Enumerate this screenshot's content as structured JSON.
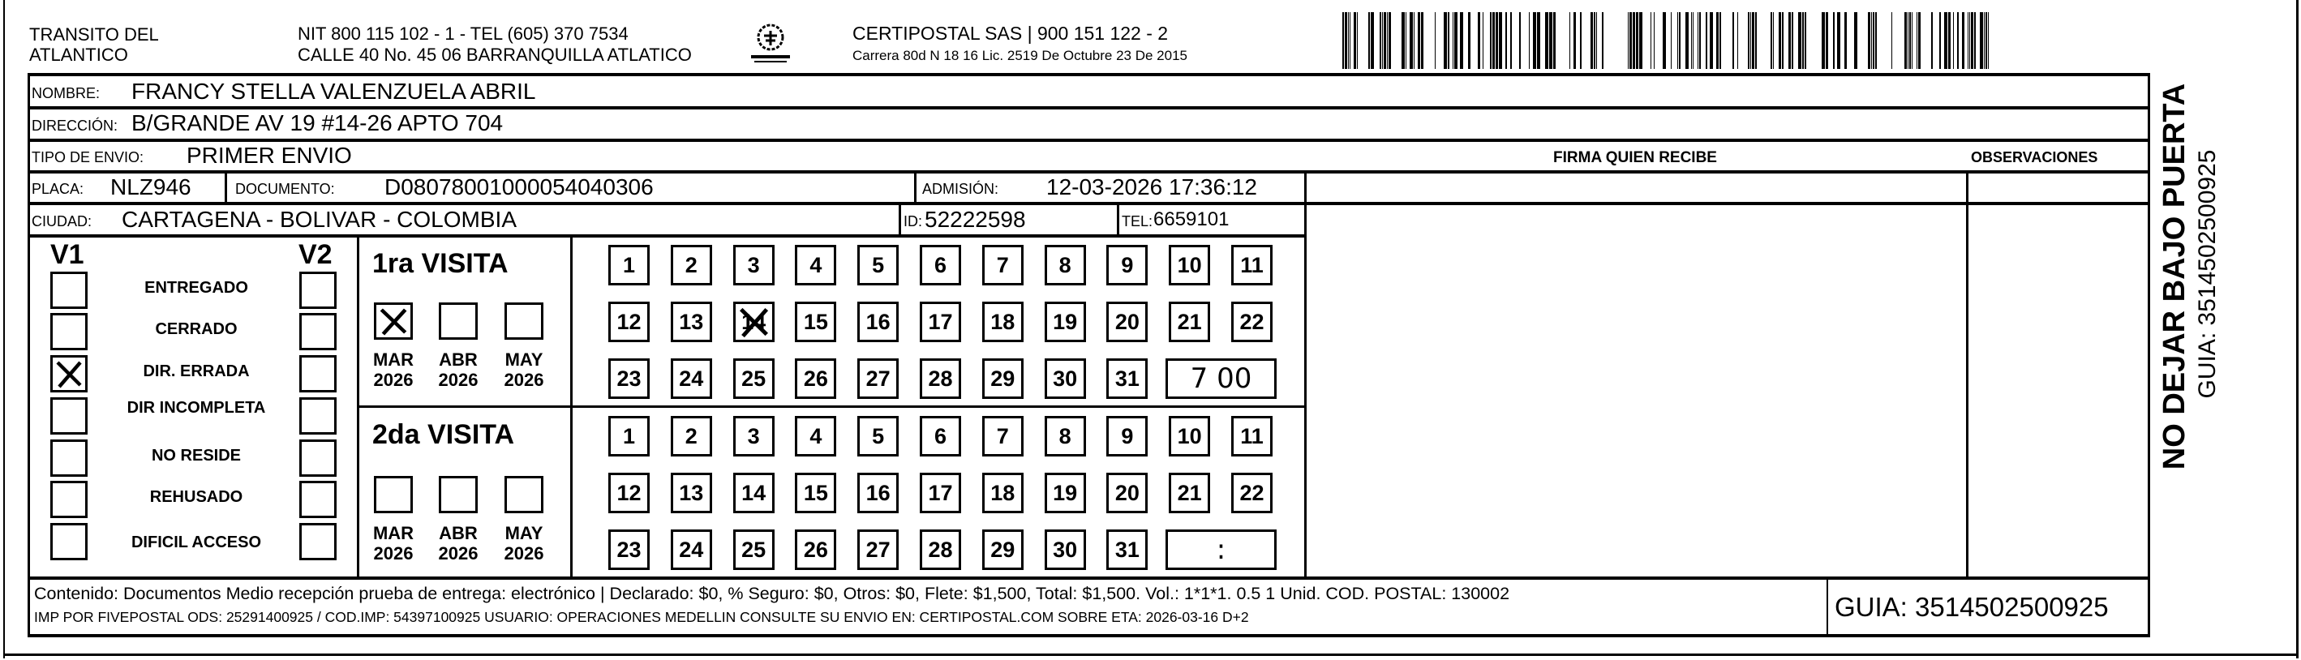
{
  "header": {
    "issuer_line1": "TRANSITO DEL",
    "issuer_line2": "ATLANTICO",
    "nit_line": "NIT 800 115 102 - 1 - TEL (605) 370 7534",
    "address_line": "CALLE 40 No. 45 06 BARRANQUILLA ATLATICO",
    "logo_text": "CERTIPOSTAL",
    "carrier_line": "CERTIPOSTAL SAS | 900 151 122 - 2",
    "carrier_address": "Carrera 80d N 18 16  Lic. 2519 De Octubre 23 De 2015",
    "barcode_value": "3514502500925"
  },
  "recipient": {
    "nombre_label": "NOMBRE:",
    "nombre": "FRANCY STELLA VALENZUELA ABRIL",
    "direccion_label": "DIRECCIÓN:",
    "direccion": "B/GRANDE AV 19 #14-26 APTO 704",
    "tipo_label": "TIPO DE ENVIO:",
    "tipo": "PRIMER ENVIO",
    "placa_label": "PLACA:",
    "placa": "NLZ946",
    "documento_label": "DOCUMENTO:",
    "documento": "D08078001000054040306",
    "admision_label": "ADMISIÓN:",
    "admision": "12-03-2026 17:36:12",
    "ciudad_label": "CIUDAD:",
    "ciudad": "CARTAGENA - BOLIVAR - COLOMBIA",
    "id_label": "ID:",
    "id": "52222598",
    "tel_label": "TEL:",
    "tel": "6659101"
  },
  "columns": {
    "firma": "FIRMA QUIEN RECIBE",
    "observaciones": "OBSERVACIONES"
  },
  "status": {
    "v1_label": "V1",
    "v2_label": "V2",
    "items": [
      {
        "label": "ENTREGADO",
        "v1": false,
        "v2": false
      },
      {
        "label": "CERRADO",
        "v1": false,
        "v2": false
      },
      {
        "label": "DIR. ERRADA",
        "v1": true,
        "v2": false
      },
      {
        "label": "DIR INCOMPLETA",
        "v1": false,
        "v2": false
      },
      {
        "label": "NO RESIDE",
        "v1": false,
        "v2": false
      },
      {
        "label": "REHUSADO",
        "v1": false,
        "v2": false
      },
      {
        "label": "DIFICIL ACCESO",
        "v1": false,
        "v2": false
      }
    ]
  },
  "visits": [
    {
      "title": "1ra VISITA",
      "months": [
        {
          "month": "MAR",
          "year": "2026",
          "checked": true
        },
        {
          "month": "ABR",
          "year": "2026",
          "checked": false
        },
        {
          "month": "MAY",
          "year": "2026",
          "checked": false
        }
      ],
      "days": [
        "1",
        "2",
        "3",
        "4",
        "5",
        "6",
        "7",
        "8",
        "9",
        "10",
        "11",
        "12",
        "13",
        "14",
        "15",
        "16",
        "17",
        "18",
        "19",
        "20",
        "21",
        "22",
        "23",
        "24",
        "25",
        "26",
        "27",
        "28",
        "29",
        "30",
        "31"
      ],
      "marked_day": "14",
      "time": "7 00"
    },
    {
      "title": "2da VISITA",
      "months": [
        {
          "month": "MAR",
          "year": "2026",
          "checked": false
        },
        {
          "month": "ABR",
          "year": "2026",
          "checked": false
        },
        {
          "month": "MAY",
          "year": "2026",
          "checked": false
        }
      ],
      "days": [
        "1",
        "2",
        "3",
        "4",
        "5",
        "6",
        "7",
        "8",
        "9",
        "10",
        "11",
        "12",
        "13",
        "14",
        "15",
        "16",
        "17",
        "18",
        "19",
        "20",
        "21",
        "22",
        "23",
        "24",
        "25",
        "26",
        "27",
        "28",
        "29",
        "30",
        "31"
      ],
      "marked_day": null,
      "time": ":"
    }
  ],
  "side": {
    "warning": "NO DEJAR BAJO PUERTA",
    "guia": "GUIA: 3514502500925"
  },
  "footer": {
    "line1": "Contenido: Documentos Medio recepción prueba de entrega: electrónico | Declarado: $0, % Seguro: $0, Otros: $0, Flete: $1,500, Total: $1,500. Vol.: 1*1*1. 0.5  1 Unid. COD. POSTAL: 130002",
    "line2": "IMP POR FIVEPOSTAL ODS: 25291400925 / COD.IMP: 54397100925 USUARIO: OPERACIONES MEDELLIN CONSULTE SU ENVIO EN: CERTIPOSTAL.COM SOBRE ETA: 2026-03-16 D+2",
    "guia": "GUIA: 3514502500925"
  }
}
